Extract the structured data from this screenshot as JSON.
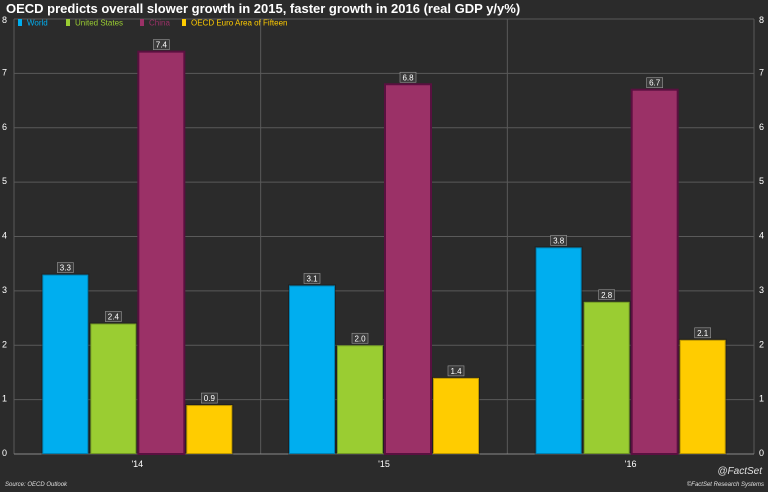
{
  "title": "OECD predicts overall slower growth in 2015, faster growth in 2016 (real GDP y/y%)",
  "source": "Source: OECD Outlook",
  "copyright": "©FactSet Research Systems",
  "watermark": "@FactSet",
  "chart_data": {
    "type": "bar",
    "categories": [
      "'14",
      "'15",
      "'16"
    ],
    "series": [
      {
        "name": "World",
        "values": [
          3.3,
          3.1,
          3.8
        ],
        "color": "#00aeef"
      },
      {
        "name": "United States",
        "values": [
          2.4,
          2.0,
          2.8
        ],
        "color": "#9acd32"
      },
      {
        "name": "China",
        "values": [
          7.4,
          6.8,
          6.7
        ],
        "color": "#9b3167"
      },
      {
        "name": "OECD Euro Area of Fifteen",
        "values": [
          0.9,
          1.4,
          2.1
        ],
        "color": "#ffcc00"
      }
    ],
    "legend_text_colors": [
      "#00aeef",
      "#9acd32",
      "#9b3167",
      "#ffcc00"
    ],
    "bar_label_format": "one decimal",
    "yticks": [
      "0",
      "1",
      "2",
      "3",
      "4",
      "5",
      "6",
      "7",
      "8"
    ],
    "ylim": [
      0,
      8
    ],
    "ylabel": "",
    "xlabel": "",
    "grid": true,
    "legend_position": "top-left",
    "y_axis_labels": "both-sides"
  }
}
